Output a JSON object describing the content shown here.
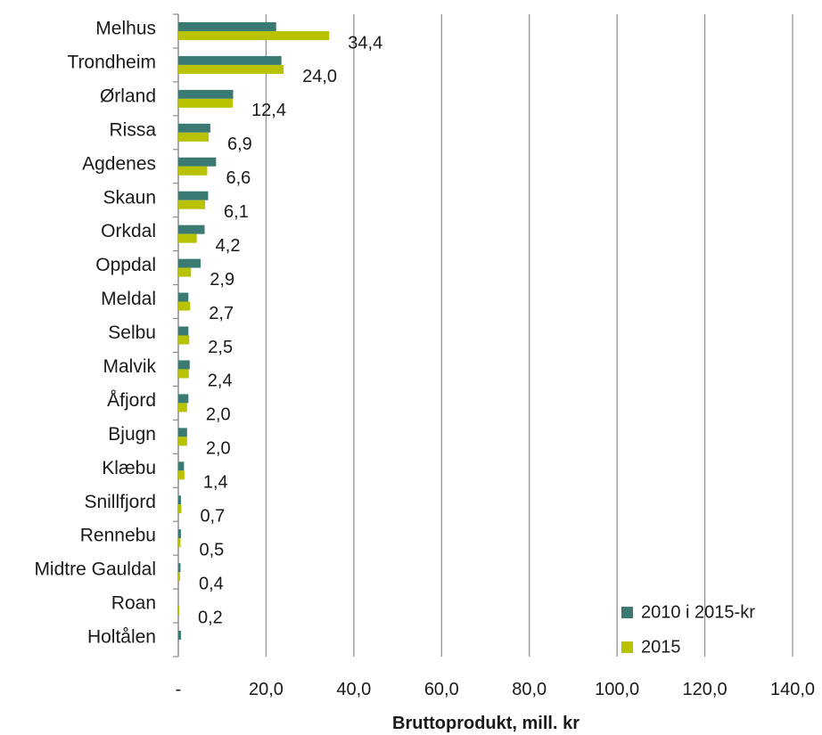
{
  "chart_data": {
    "type": "bar",
    "orientation": "horizontal",
    "categories": [
      "Melhus",
      "Trondheim",
      "Ørland",
      "Rissa",
      "Agdenes",
      "Skaun",
      "Orkdal",
      "Oppdal",
      "Meldal",
      "Selbu",
      "Malvik",
      "Åfjord",
      "Bjugn",
      "Klæbu",
      "Snillfjord",
      "Rennebu",
      "Midtre Gauldal",
      "Roan",
      "Holtålen"
    ],
    "series": [
      {
        "name": "2010 i 2015-kr",
        "color": "#3b7a72",
        "values": [
          22.3,
          23.5,
          12.5,
          7.3,
          8.6,
          6.8,
          6.0,
          5.1,
          2.3,
          2.3,
          2.6,
          2.3,
          2.0,
          1.3,
          0.6,
          0.6,
          0.5,
          0.0,
          0.6
        ]
      },
      {
        "name": "2015",
        "color": "#b8c200",
        "values": [
          34.4,
          24.0,
          12.4,
          6.9,
          6.6,
          6.1,
          4.2,
          2.9,
          2.7,
          2.5,
          2.4,
          2.0,
          2.0,
          1.4,
          0.7,
          0.5,
          0.4,
          0.2,
          0.0
        ]
      }
    ],
    "data_labels": [
      "34,4",
      "24,0",
      "12,4",
      "6,9",
      "6,6",
      "6,1",
      "4,2",
      "2,9",
      "2,7",
      "2,5",
      "2,4",
      "2,0",
      "2,0",
      "1,4",
      "0,7",
      "0,5",
      "0,4",
      "0,2",
      ""
    ],
    "xlim": [
      0,
      140
    ],
    "xticks": [
      0,
      20,
      40,
      60,
      80,
      100,
      120,
      140
    ],
    "xtick_labels": [
      "-",
      "20,0",
      "40,0",
      "60,0",
      "80,0",
      "100,0",
      "120,0",
      "140,0"
    ],
    "xlabel": "Bruttoprodukt, mill. kr",
    "ylabel": "",
    "title": "",
    "grid": "vertical",
    "legend_position": "bottom-right"
  }
}
